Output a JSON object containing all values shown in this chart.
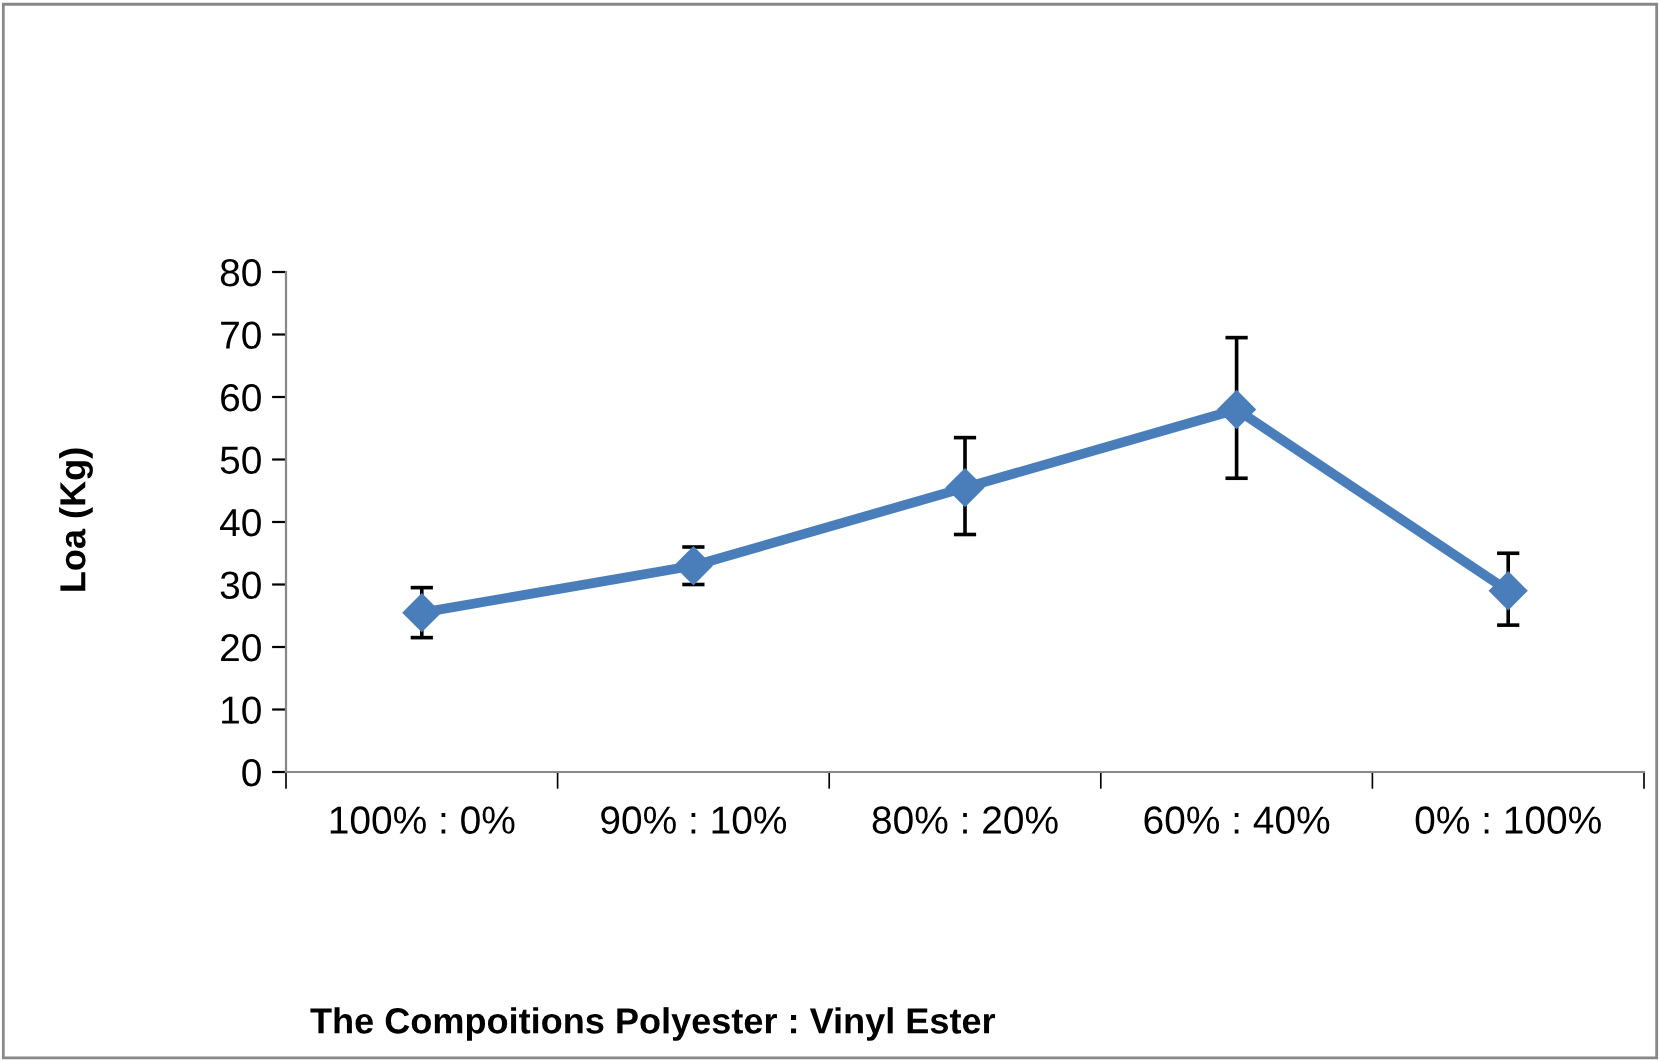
{
  "chart_data": {
    "type": "line",
    "xlabel": "The Compoitions Polyester : Vinyl Ester",
    "ylabel": "Loa (Kg)",
    "categories": [
      "100% : 0%",
      "90% : 10%",
      "80% : 20%",
      "60% : 40%",
      "0% : 100%"
    ],
    "series": [
      {
        "color": "#4a7ebb",
        "values": [
          25.5,
          33,
          45.5,
          58,
          29
        ],
        "errors": [
          [
            21.5,
            29.5
          ],
          [
            30,
            36
          ],
          [
            38,
            53.5
          ],
          [
            47,
            69.5
          ],
          [
            23.5,
            35
          ]
        ]
      }
    ],
    "ylim": [
      0,
      80
    ],
    "yticks": [
      0,
      10,
      20,
      30,
      40,
      50,
      60,
      70,
      80
    ],
    "marker": "diamond",
    "grid": false,
    "legend": false
  }
}
